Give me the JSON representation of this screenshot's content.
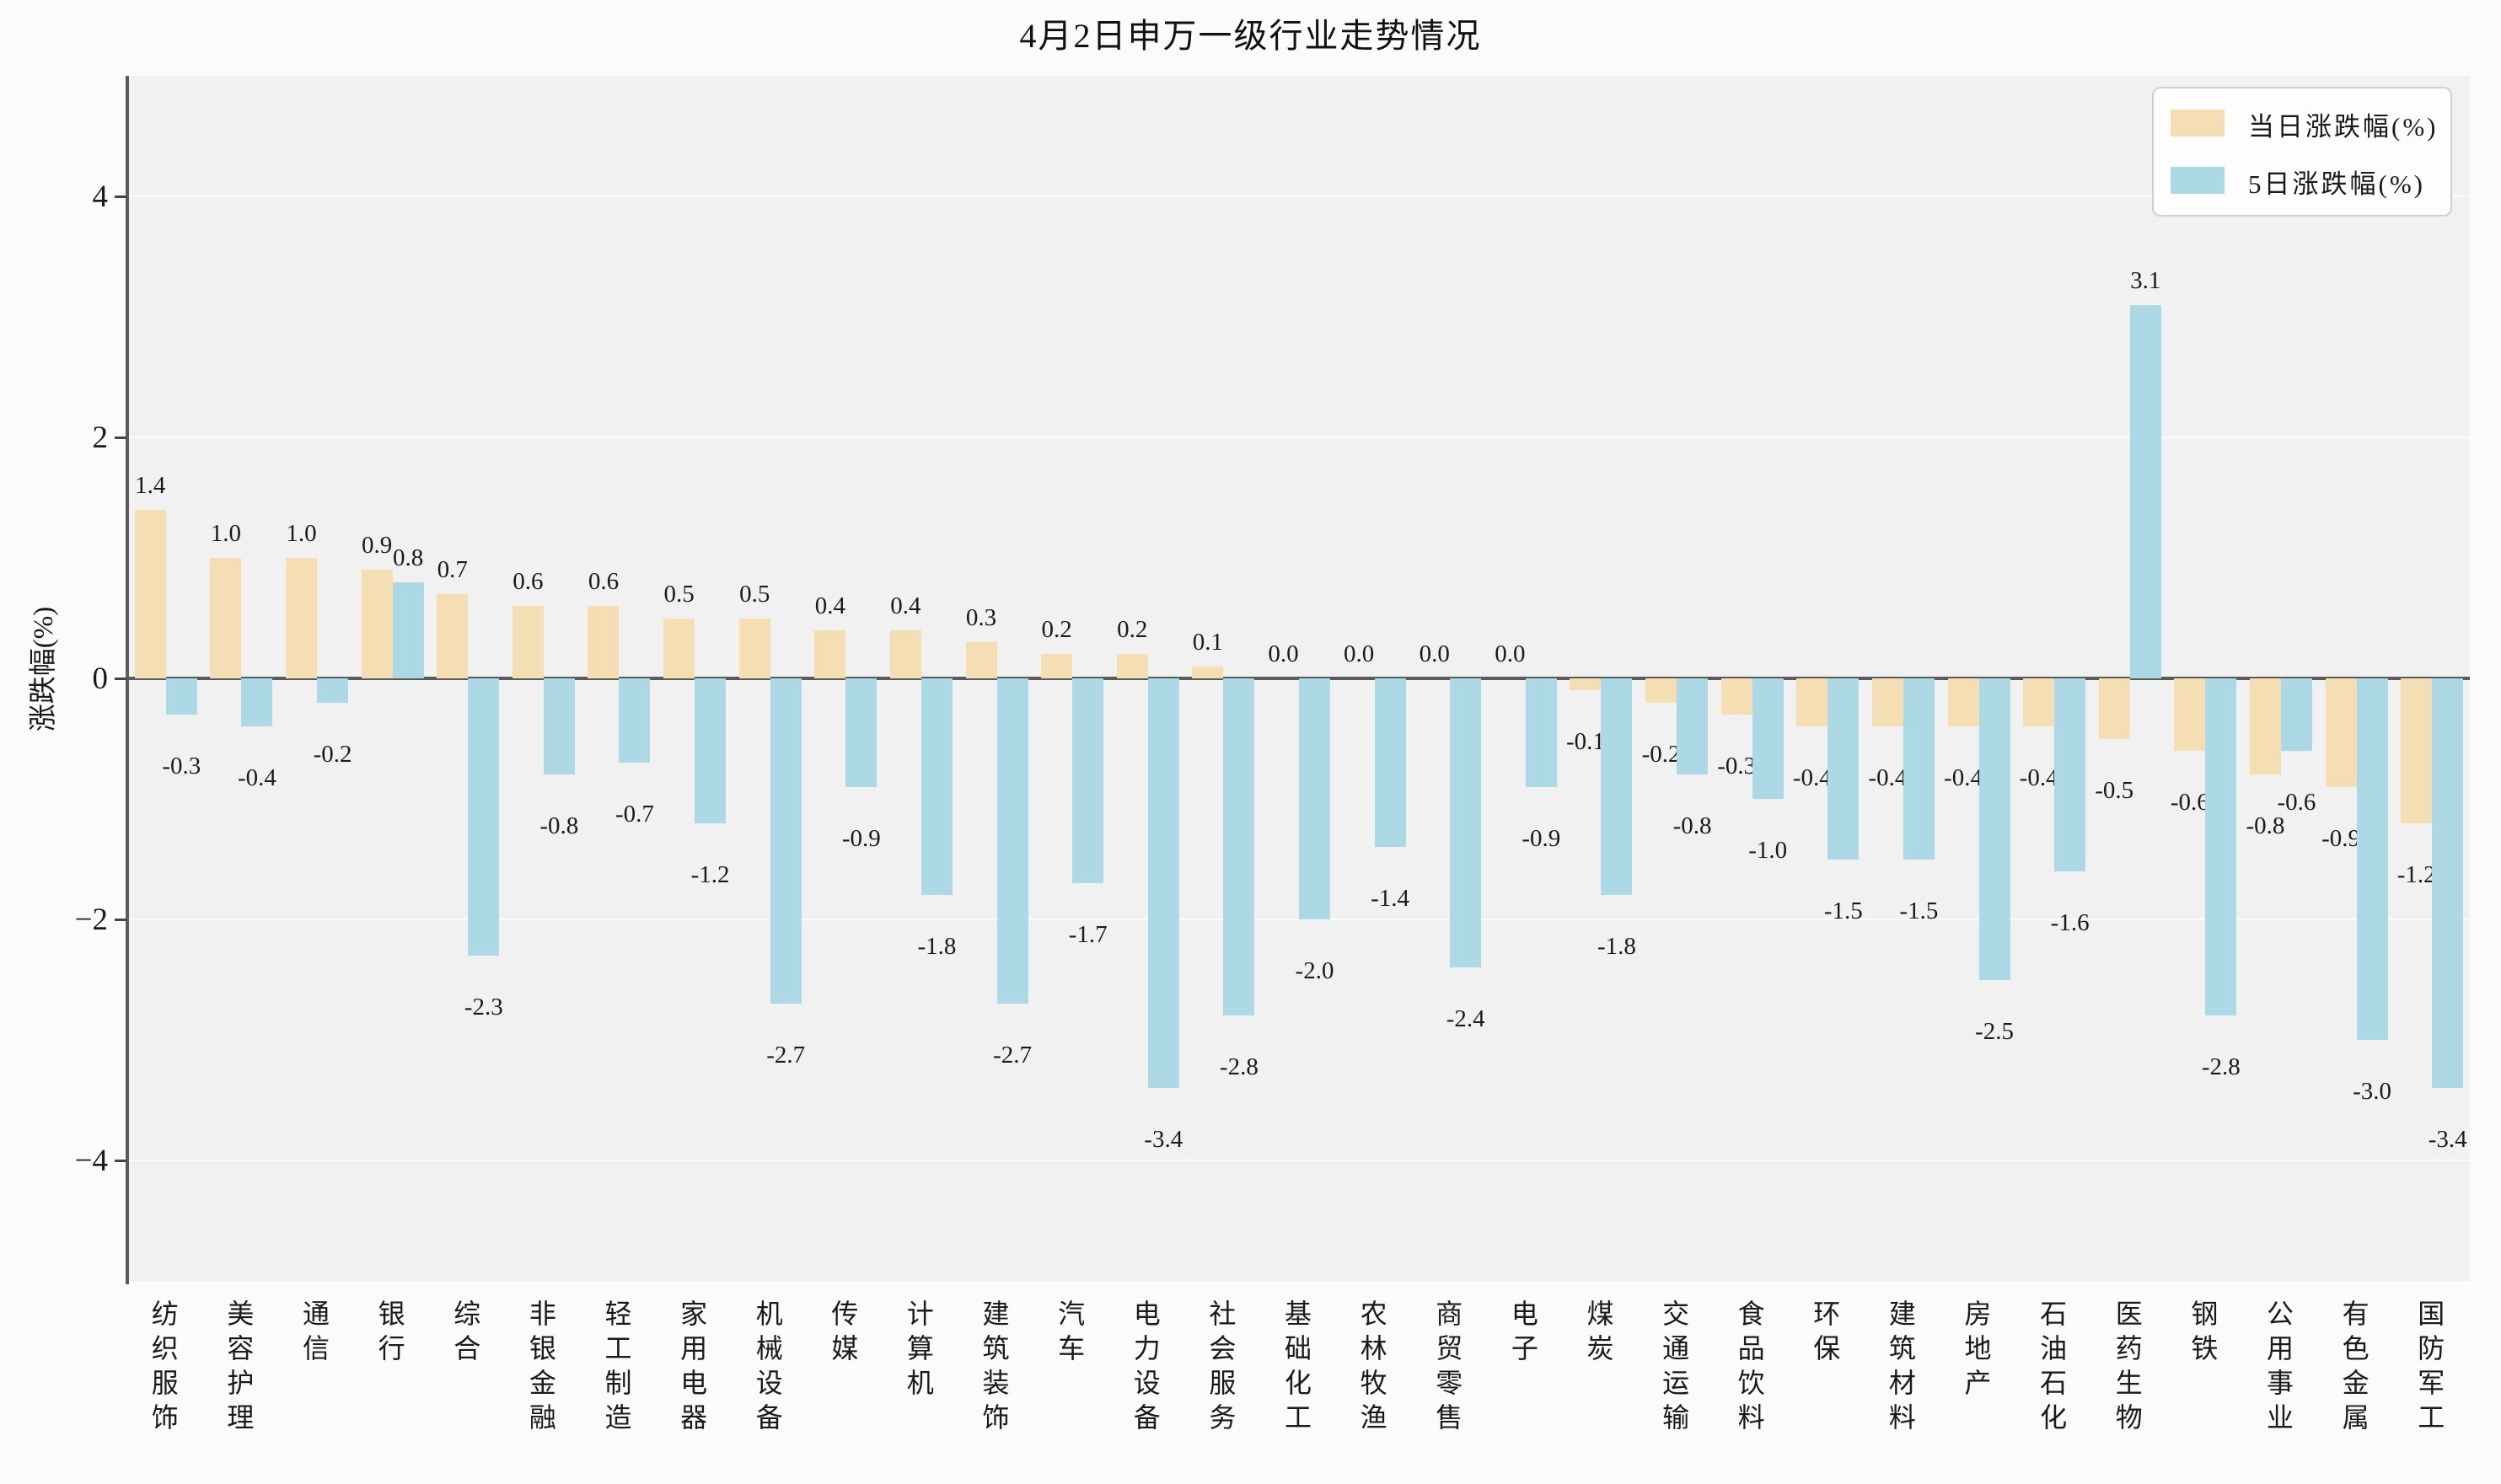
{
  "title": "4月2日申万一级行业走势情况",
  "y_axis": {
    "label": "涨跌幅(%)",
    "ticks": [
      4,
      2,
      0,
      -2,
      -4
    ],
    "min": -5,
    "max": 5
  },
  "colors": {
    "daily_bar": "#f5deb3",
    "fiveday_bar": "#add8e6",
    "plot_background": "#f1f1f2",
    "figure_background": "#fbfbfb",
    "axis_line": "#5a5a5a",
    "gridline": "#fbfbfb"
  },
  "chart_data": {
    "type": "bar",
    "title": "4月2日申万一级行业走势情况",
    "xlabel": "",
    "ylabel": "涨跌幅(%)",
    "ylim": [
      -5,
      5
    ],
    "yticks": [
      4,
      2,
      0,
      -2,
      -4
    ],
    "grid": true,
    "legend_position": "upper right",
    "categories": [
      "纺织服饰",
      "美容护理",
      "通信",
      "银行",
      "综合",
      "非银金融",
      "轻工制造",
      "家用电器",
      "机械设备",
      "传媒",
      "计算机",
      "建筑装饰",
      "汽车",
      "电力设备",
      "社会服务",
      "基础化工",
      "农林牧渔",
      "商贸零售",
      "电子",
      "煤炭",
      "交通运输",
      "食品饮料",
      "环保",
      "建筑材料",
      "房地产",
      "石油石化",
      "医药生物",
      "钢铁",
      "公用事业",
      "有色金属",
      "国防军工"
    ],
    "series": [
      {
        "name": "当日涨跌幅(%)",
        "color": "#f5deb3",
        "values": [
          1.4,
          1.0,
          1.0,
          0.9,
          0.7,
          0.6,
          0.6,
          0.5,
          0.5,
          0.4,
          0.4,
          0.3,
          0.2,
          0.2,
          0.1,
          0.0,
          0.0,
          0.0,
          0.0,
          -0.1,
          -0.2,
          -0.3,
          -0.4,
          -0.4,
          -0.4,
          -0.4,
          -0.5,
          -0.6,
          -0.8,
          -0.9,
          -1.2
        ]
      },
      {
        "name": "5日涨跌幅(%)",
        "color": "#add8e6",
        "values": [
          -0.3,
          -0.4,
          -0.2,
          0.8,
          -2.3,
          -0.8,
          -0.7,
          -1.2,
          -2.7,
          -0.9,
          -1.8,
          -2.7,
          -1.7,
          -3.4,
          -2.8,
          -2.0,
          -1.4,
          -2.4,
          -0.9,
          -1.8,
          -0.8,
          -1.0,
          -1.5,
          -1.5,
          -2.5,
          -1.6,
          3.1,
          -2.8,
          -0.6,
          -3.0,
          -3.4
        ]
      }
    ]
  }
}
